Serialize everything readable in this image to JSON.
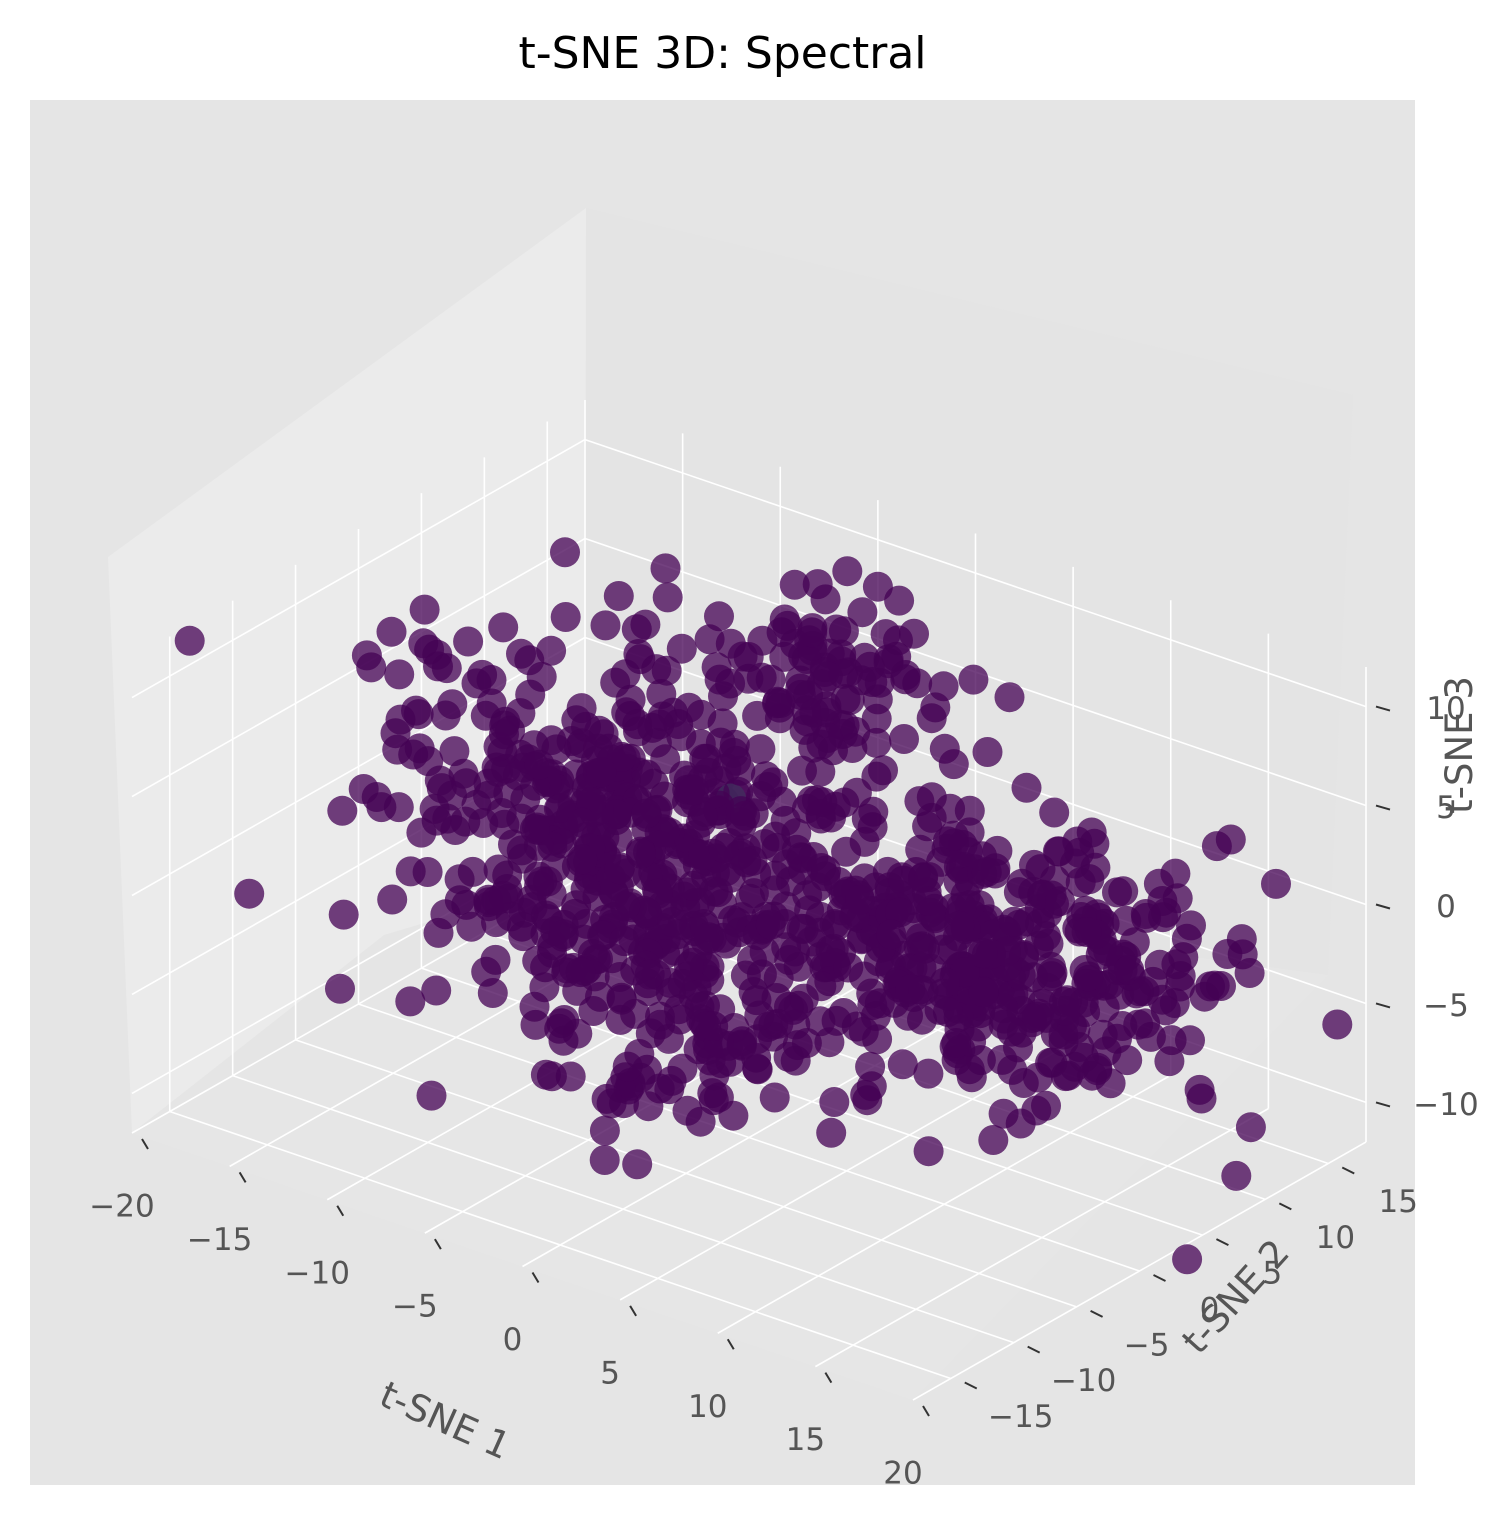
{
  "chart_data": {
    "type": "scatter",
    "title": "t-SNE 3D: Spectral",
    "xlabel": "t-SNE 1",
    "ylabel": "t-SNE 2",
    "zlabel": "t-SNE 3",
    "projection": "3d",
    "xlim": [
      -20,
      20
    ],
    "ylim": [
      -18,
      18
    ],
    "zlim": [
      -12,
      12
    ],
    "x_ticks": [
      "−20",
      "−15",
      "−10",
      "−5",
      "0",
      "5",
      "10",
      "15",
      "20"
    ],
    "y_ticks": [
      "−15",
      "−10",
      "−5",
      "0",
      "5",
      "10",
      "15"
    ],
    "z_ticks": [
      "−10",
      "−5",
      "0",
      "5",
      "10"
    ],
    "grid": true,
    "background": "#e5e5e5",
    "series": [
      {
        "cluster": 0,
        "color": "#440154",
        "approx_points": 1100
      },
      {
        "cluster": 1,
        "color": "#35b779",
        "approx_points": 2
      }
    ],
    "clusters": [
      {
        "label_index": 0,
        "center": [
          -9,
          2,
          0
        ],
        "spread": [
          5,
          4,
          4
        ]
      },
      {
        "label_index": 0,
        "center": [
          10,
          2,
          0
        ],
        "spread": [
          6,
          4,
          3
        ]
      },
      {
        "label_index": 0,
        "center": [
          0,
          -6,
          -4
        ],
        "spread": [
          3,
          3,
          3
        ]
      },
      {
        "label_index": 0,
        "center": [
          -3,
          10,
          6
        ],
        "spread": [
          3,
          3,
          2
        ]
      }
    ],
    "highlight_points": [
      {
        "x": -3.5,
        "y": 4,
        "z": 2.5,
        "label_index": 1
      }
    ]
  }
}
